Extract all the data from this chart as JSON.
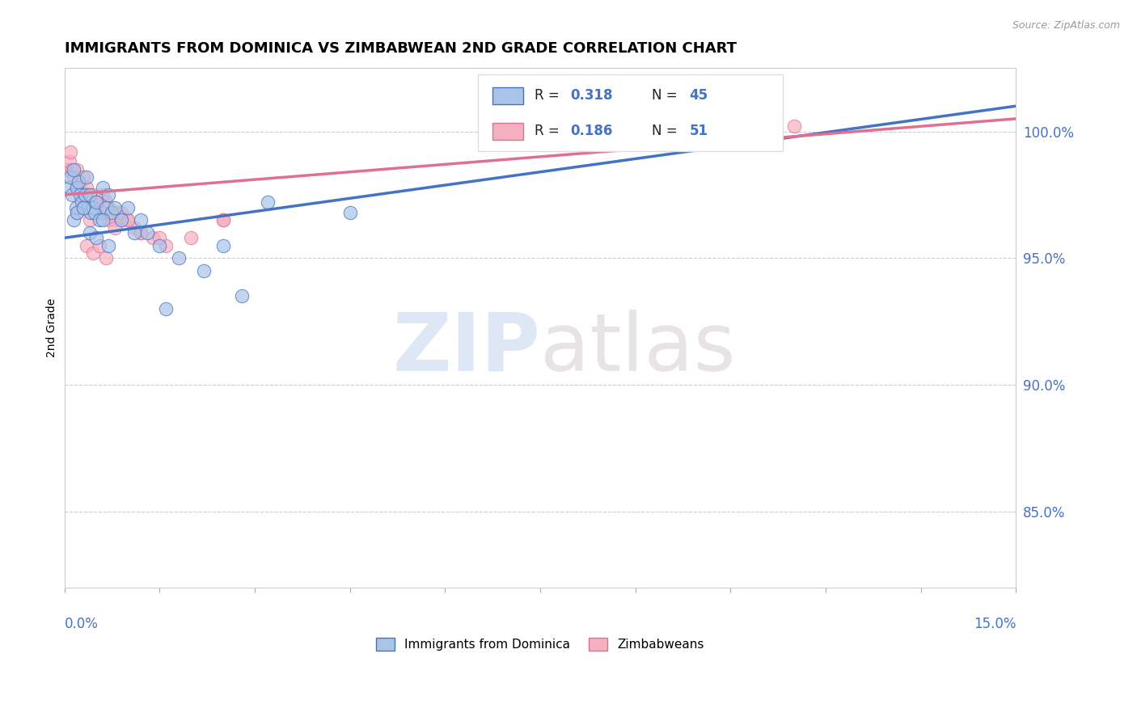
{
  "title": "IMMIGRANTS FROM DOMINICA VS ZIMBABWEAN 2ND GRADE CORRELATION CHART",
  "source": "Source: ZipAtlas.com",
  "ylabel": "2nd Grade",
  "xlim": [
    0.0,
    15.0
  ],
  "ylim": [
    82.0,
    102.5
  ],
  "yticks": [
    85.0,
    90.0,
    95.0,
    100.0
  ],
  "ytick_labels": [
    "85.0%",
    "90.0%",
    "95.0%",
    "100.0%"
  ],
  "series1_name": "Immigrants from Dominica",
  "series1_color": "#aac4e8",
  "series1_edge_color": "#4472c4",
  "series1_line_color": "#4472c4",
  "series1_R": 0.318,
  "series1_N": 45,
  "series2_name": "Zimbabweans",
  "series2_color": "#f4b0c0",
  "series2_edge_color": "#e07090",
  "series2_line_color": "#e07090",
  "series2_R": 0.186,
  "series2_N": 51,
  "background_color": "#ffffff",
  "grid_color": "#cccccc",
  "blue_x": [
    0.08,
    0.1,
    0.12,
    0.15,
    0.18,
    0.2,
    0.22,
    0.25,
    0.28,
    0.3,
    0.32,
    0.35,
    0.38,
    0.4,
    0.42,
    0.45,
    0.48,
    0.5,
    0.55,
    0.6,
    0.65,
    0.7,
    0.75,
    0.8,
    0.9,
    1.0,
    1.1,
    1.2,
    1.3,
    1.5,
    1.8,
    2.2,
    2.5,
    2.8,
    3.2,
    0.15,
    0.2,
    0.3,
    0.4,
    0.5,
    0.6,
    0.7,
    4.5,
    1.6,
    9.2
  ],
  "blue_y": [
    97.8,
    98.2,
    97.5,
    98.5,
    97.0,
    97.8,
    98.0,
    97.5,
    97.2,
    97.0,
    97.5,
    98.2,
    97.0,
    97.5,
    96.8,
    97.0,
    96.8,
    97.2,
    96.5,
    97.8,
    97.0,
    97.5,
    96.8,
    97.0,
    96.5,
    97.0,
    96.0,
    96.5,
    96.0,
    95.5,
    95.0,
    94.5,
    95.5,
    93.5,
    97.2,
    96.5,
    96.8,
    97.0,
    96.0,
    95.8,
    96.5,
    95.5,
    96.8,
    93.0,
    100.8
  ],
  "pink_x": [
    0.05,
    0.08,
    0.1,
    0.12,
    0.15,
    0.18,
    0.2,
    0.22,
    0.25,
    0.28,
    0.3,
    0.32,
    0.35,
    0.38,
    0.4,
    0.42,
    0.45,
    0.48,
    0.5,
    0.55,
    0.6,
    0.65,
    0.7,
    0.75,
    0.8,
    0.85,
    0.9,
    1.0,
    1.1,
    1.2,
    1.4,
    1.6,
    2.0,
    2.5,
    0.2,
    0.3,
    0.4,
    0.5,
    0.6,
    0.7,
    0.8,
    0.9,
    1.0,
    1.2,
    1.5,
    2.5,
    0.35,
    0.45,
    0.55,
    0.65,
    11.5
  ],
  "pink_y": [
    98.5,
    98.8,
    99.2,
    98.5,
    98.2,
    97.8,
    98.5,
    98.0,
    97.8,
    97.5,
    98.2,
    97.5,
    97.8,
    97.5,
    97.2,
    97.0,
    97.5,
    97.2,
    97.0,
    96.8,
    97.5,
    97.2,
    97.0,
    96.8,
    96.5,
    96.8,
    96.5,
    96.5,
    96.2,
    96.0,
    95.8,
    95.5,
    95.8,
    96.5,
    96.8,
    97.0,
    96.5,
    97.2,
    96.8,
    96.5,
    96.2,
    96.8,
    96.5,
    96.0,
    95.8,
    96.5,
    95.5,
    95.2,
    95.5,
    95.0,
    100.2
  ],
  "blue_trend_x0": 0.0,
  "blue_trend_y0": 95.8,
  "blue_trend_x1": 15.0,
  "blue_trend_y1": 101.0,
  "pink_trend_x0": 0.0,
  "pink_trend_y0": 97.5,
  "pink_trend_x1": 15.0,
  "pink_trend_y1": 100.5
}
